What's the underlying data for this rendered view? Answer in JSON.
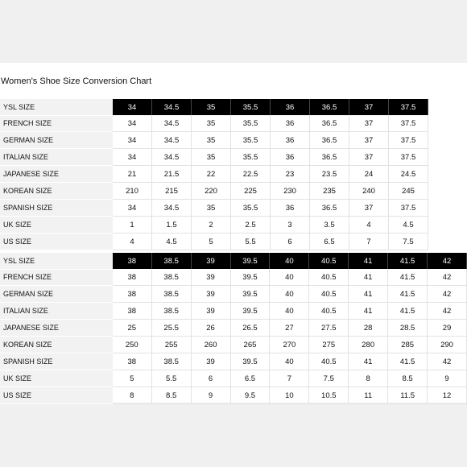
{
  "title": "Women's Shoe Size Conversion Chart",
  "tables": [
    {
      "rows": [
        {
          "label": "YSL SIZE",
          "values": [
            "34",
            "34.5",
            "35",
            "35.5",
            "36",
            "36.5",
            "37",
            "37.5"
          ]
        },
        {
          "label": "FRENCH SIZE",
          "values": [
            "34",
            "34.5",
            "35",
            "35.5",
            "36",
            "36.5",
            "37",
            "37.5"
          ]
        },
        {
          "label": "GERMAN SIZE",
          "values": [
            "34",
            "34.5",
            "35",
            "35.5",
            "36",
            "36.5",
            "37",
            "37.5"
          ]
        },
        {
          "label": "ITALIAN SIZE",
          "values": [
            "34",
            "34.5",
            "35",
            "35.5",
            "36",
            "36.5",
            "37",
            "37.5"
          ]
        },
        {
          "label": "JAPANESE SIZE",
          "values": [
            "21",
            "21.5",
            "22",
            "22.5",
            "23",
            "23.5",
            "24",
            "24.5"
          ]
        },
        {
          "label": "KOREAN SIZE",
          "values": [
            "210",
            "215",
            "220",
            "225",
            "230",
            "235",
            "240",
            "245"
          ]
        },
        {
          "label": "SPANISH SIZE",
          "values": [
            "34",
            "34.5",
            "35",
            "35.5",
            "36",
            "36.5",
            "37",
            "37.5"
          ]
        },
        {
          "label": "UK SIZE",
          "values": [
            "1",
            "1.5",
            "2",
            "2.5",
            "3",
            "3.5",
            "4",
            "4.5"
          ]
        },
        {
          "label": "US SIZE",
          "values": [
            "4",
            "4.5",
            "5",
            "5.5",
            "6",
            "6.5",
            "7",
            "7.5"
          ]
        }
      ]
    },
    {
      "rows": [
        {
          "label": "YSL SIZE",
          "values": [
            "38",
            "38.5",
            "39",
            "39.5",
            "40",
            "40.5",
            "41",
            "41.5",
            "42"
          ]
        },
        {
          "label": "FRENCH SIZE",
          "values": [
            "38",
            "38.5",
            "39",
            "39.5",
            "40",
            "40.5",
            "41",
            "41.5",
            "42"
          ]
        },
        {
          "label": "GERMAN SIZE",
          "values": [
            "38",
            "38.5",
            "39",
            "39.5",
            "40",
            "40.5",
            "41",
            "41.5",
            "42"
          ]
        },
        {
          "label": "ITALIAN SIZE",
          "values": [
            "38",
            "38.5",
            "39",
            "39.5",
            "40",
            "40.5",
            "41",
            "41.5",
            "42"
          ]
        },
        {
          "label": "JAPANESE SIZE",
          "values": [
            "25",
            "25.5",
            "26",
            "26.5",
            "27",
            "27.5",
            "28",
            "28.5",
            "29"
          ]
        },
        {
          "label": "KOREAN SIZE",
          "values": [
            "250",
            "255",
            "260",
            "265",
            "270",
            "275",
            "280",
            "285",
            "290"
          ]
        },
        {
          "label": "SPANISH SIZE",
          "values": [
            "38",
            "38.5",
            "39",
            "39.5",
            "40",
            "40.5",
            "41",
            "41.5",
            "42"
          ]
        },
        {
          "label": "UK SIZE",
          "values": [
            "5",
            "5.5",
            "6",
            "6.5",
            "7",
            "7.5",
            "8",
            "8.5",
            "9"
          ]
        },
        {
          "label": "US SIZE",
          "values": [
            "8",
            "8.5",
            "9",
            "9.5",
            "10",
            "10.5",
            "11",
            "11.5",
            "12"
          ]
        }
      ]
    }
  ]
}
